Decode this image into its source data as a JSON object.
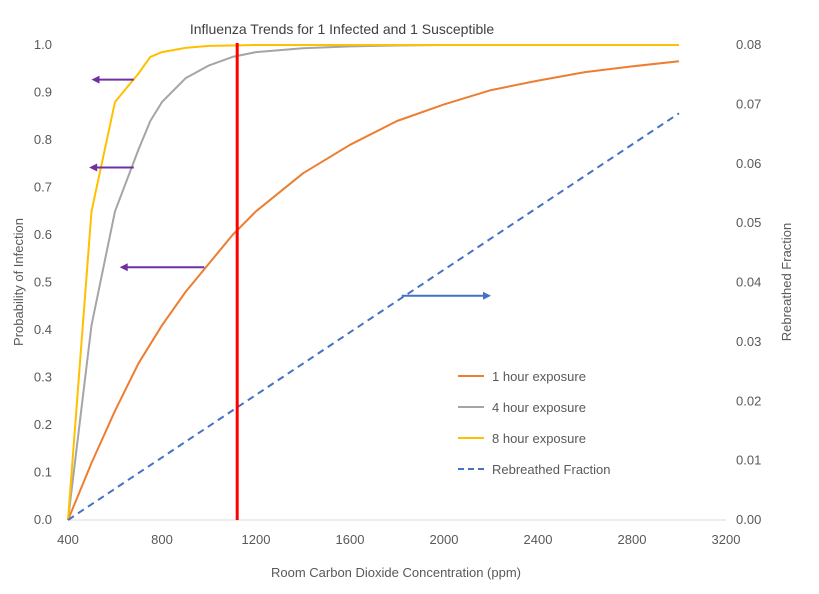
{
  "chart_data": {
    "type": "line",
    "title": "Influenza Trends for 1 Infected and 1 Susceptible",
    "xlabel": "Room Carbon Dioxide Concentration (ppm)",
    "ylabel": "Probability of Infection",
    "y2label": "Rebreathed Fraction",
    "xlim": [
      400,
      3200
    ],
    "ylim": [
      0,
      1.0
    ],
    "y2lim": [
      0,
      0.08
    ],
    "x_ticks": [
      "400",
      "800",
      "1200",
      "1600",
      "2000",
      "2400",
      "2800",
      "3200"
    ],
    "y_ticks": [
      "0.0",
      "0.1",
      "0.2",
      "0.3",
      "0.4",
      "0.5",
      "0.6",
      "0.7",
      "0.8",
      "0.9",
      "1.0"
    ],
    "y2_ticks": [
      "0.00",
      "0.01",
      "0.02",
      "0.03",
      "0.04",
      "0.05",
      "0.06",
      "0.07",
      "0.08"
    ],
    "grid": false,
    "legend_position": "bottom-right",
    "reference_line_x": 1120,
    "series": [
      {
        "name": "1 hour exposure",
        "axis": "left",
        "color": "#ED7D31",
        "dash": "solid",
        "x": [
          400,
          500,
          600,
          700,
          800,
          900,
          1000,
          1100,
          1200,
          1400,
          1600,
          1800,
          2000,
          2200,
          2400,
          2600,
          2800,
          3000
        ],
        "y": [
          0,
          0.12,
          0.23,
          0.33,
          0.41,
          0.48,
          0.54,
          0.6,
          0.65,
          0.73,
          0.79,
          0.84,
          0.875,
          0.905,
          0.925,
          0.943,
          0.955,
          0.966
        ]
      },
      {
        "name": "4 hour exposure",
        "axis": "left",
        "color": "#A5A5A5",
        "dash": "solid",
        "x": [
          400,
          500,
          600,
          700,
          750,
          800,
          900,
          1000,
          1100,
          1200,
          1400,
          1600,
          1800,
          2000,
          2200,
          3000
        ],
        "y": [
          0,
          0.41,
          0.65,
          0.78,
          0.84,
          0.88,
          0.93,
          0.957,
          0.975,
          0.985,
          0.993,
          0.997,
          0.999,
          1.0,
          1.0,
          1.0
        ]
      },
      {
        "name": "8 hour exposure",
        "axis": "left",
        "color": "#FFC000",
        "dash": "solid",
        "x": [
          400,
          500,
          600,
          700,
          750,
          800,
          900,
          1000,
          1100,
          1200,
          1600,
          2000,
          3000
        ],
        "y": [
          0,
          0.65,
          0.88,
          0.94,
          0.975,
          0.985,
          0.994,
          0.998,
          0.999,
          1.0,
          1.0,
          1.0,
          1.0
        ]
      },
      {
        "name": "Rebreathed Fraction",
        "axis": "right",
        "color": "#4472C4",
        "dash": "dashed",
        "x": [
          400,
          3000
        ],
        "y": [
          0,
          0.0685
        ]
      }
    ],
    "axis_arrows": [
      {
        "color": "#7030A0",
        "direction": "left",
        "x_from": 680,
        "x_to": 500,
        "y": 0.927
      },
      {
        "color": "#7030A0",
        "direction": "left",
        "x_from": 680,
        "x_to": 490,
        "y": 0.742
      },
      {
        "color": "#7030A0",
        "direction": "left",
        "x_from": 980,
        "x_to": 620,
        "y": 0.532
      },
      {
        "color": "#4472C4",
        "direction": "right",
        "x_from": 1820,
        "x_to": 2200,
        "y": 0.472
      }
    ]
  }
}
